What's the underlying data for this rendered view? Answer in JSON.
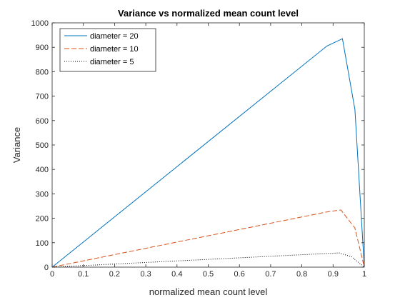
{
  "chart_data": {
    "type": "line",
    "title": "Variance vs normalized mean count level",
    "xlabel": "normalized mean count level",
    "ylabel": "Variance",
    "xlim": [
      0,
      1
    ],
    "ylim": [
      0,
      1000
    ],
    "xticks": [
      "0",
      "0.1",
      "0.2",
      "0.3",
      "0.4",
      "0.5",
      "0.6",
      "0.7",
      "0.8",
      "0.9",
      "1"
    ],
    "yticks": [
      "0",
      "100",
      "200",
      "300",
      "400",
      "500",
      "600",
      "700",
      "800",
      "900",
      "1000"
    ],
    "grid": false,
    "legend_position": "top-left",
    "series": [
      {
        "name": "diameter = 20",
        "color": "#0072bd",
        "style": "solid",
        "x": [
          0,
          0.88,
          0.93,
          0.97,
          1.0
        ],
        "y": [
          0,
          905,
          935,
          645,
          0
        ]
      },
      {
        "name": "diameter = 10",
        "color": "#d95319",
        "style": "dashed",
        "x": [
          0,
          0.88,
          0.925,
          0.97,
          1.0
        ],
        "y": [
          0,
          226,
          234,
          160,
          0
        ]
      },
      {
        "name": "diameter = 5",
        "color": "#000000",
        "style": "dotted",
        "x": [
          0,
          0.88,
          0.92,
          0.96,
          1.0
        ],
        "y": [
          0,
          56,
          58,
          42,
          0
        ]
      }
    ]
  }
}
